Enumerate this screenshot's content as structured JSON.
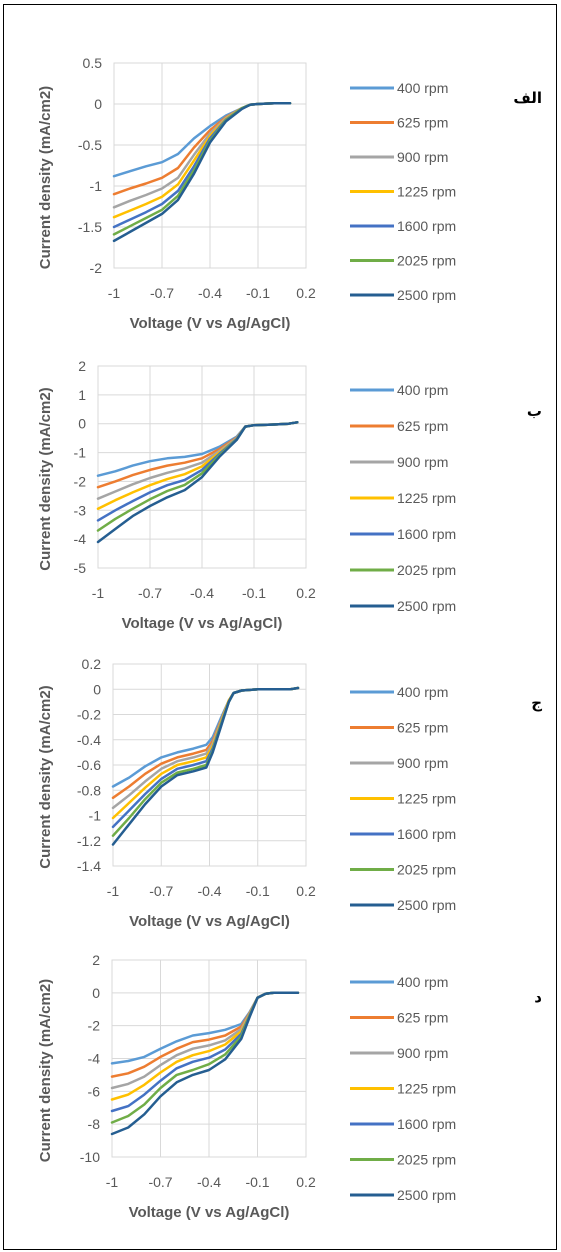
{
  "legend_colors": [
    "#5B9BD5",
    "#ED7D31",
    "#A5A5A5",
    "#FFC000",
    "#4472C4",
    "#70AD47",
    "#255E91"
  ],
  "chart_data": [
    {
      "type": "line",
      "panel_label": "الف",
      "xlabel": "Voltage (V vs Ag/AgCl)",
      "ylabel": "Current density (mA/cm2)",
      "xlim": [
        -1,
        0.2
      ],
      "xticks": [
        "-1",
        "-0.7",
        "-0.4",
        "-0.1",
        "0.2"
      ],
      "ylim": [
        -2,
        0.5
      ],
      "yticks": [
        "0.5",
        "0",
        "-0.5",
        "-1",
        "-1.5",
        "-2"
      ],
      "x": [
        -1,
        -0.9,
        -0.8,
        -0.7,
        -0.6,
        -0.5,
        -0.4,
        -0.3,
        -0.2,
        -0.15,
        -0.1,
        0,
        0.1
      ],
      "series": [
        {
          "name": "400 rpm",
          "values": [
            -0.88,
            -0.82,
            -0.76,
            -0.71,
            -0.61,
            -0.42,
            -0.27,
            -0.14,
            -0.05,
            -0.01,
            0.0,
            0.01,
            0.01
          ]
        },
        {
          "name": "625 rpm",
          "values": [
            -1.1,
            -1.03,
            -0.97,
            -0.9,
            -0.78,
            -0.53,
            -0.32,
            -0.16,
            -0.05,
            -0.01,
            0.0,
            0.01,
            0.01
          ]
        },
        {
          "name": "900 rpm",
          "values": [
            -1.26,
            -1.18,
            -1.11,
            -1.03,
            -0.9,
            -0.62,
            -0.36,
            -0.17,
            -0.05,
            -0.01,
            0.0,
            0.01,
            0.01
          ]
        },
        {
          "name": "1225 rpm",
          "values": [
            -1.38,
            -1.3,
            -1.22,
            -1.13,
            -0.98,
            -0.69,
            -0.39,
            -0.18,
            -0.05,
            -0.01,
            0.0,
            0.01,
            0.01
          ]
        },
        {
          "name": "1600 rpm",
          "values": [
            -1.5,
            -1.41,
            -1.32,
            -1.22,
            -1.06,
            -0.76,
            -0.42,
            -0.19,
            -0.05,
            -0.01,
            0.0,
            0.01,
            0.01
          ]
        },
        {
          "name": "2025 rpm",
          "values": [
            -1.59,
            -1.49,
            -1.39,
            -1.29,
            -1.12,
            -0.81,
            -0.45,
            -0.2,
            -0.05,
            -0.01,
            0.0,
            0.01,
            0.01
          ]
        },
        {
          "name": "2500 rpm",
          "values": [
            -1.67,
            -1.56,
            -1.45,
            -1.34,
            -1.17,
            -0.85,
            -0.47,
            -0.21,
            -0.06,
            -0.01,
            0.0,
            0.01,
            0.01
          ]
        }
      ]
    },
    {
      "type": "line",
      "panel_label": "ب",
      "xlabel": "Voltage (V vs Ag/AgCl)",
      "ylabel": "Current density (mA/cm2)",
      "xlim": [
        -1,
        0.2
      ],
      "xticks": [
        "-1",
        "-0.7",
        "-0.4",
        "-0.1",
        "0.2"
      ],
      "ylim": [
        -5,
        2
      ],
      "yticks": [
        "2",
        "1",
        "0",
        "-1",
        "-2",
        "-3",
        "-4",
        "-5"
      ],
      "x": [
        -1,
        -0.9,
        -0.8,
        -0.7,
        -0.6,
        -0.5,
        -0.4,
        -0.3,
        -0.2,
        -0.15,
        -0.1,
        0,
        0.1,
        0.15
      ],
      "series": [
        {
          "name": "400 rpm",
          "values": [
            -1.8,
            -1.65,
            -1.45,
            -1.3,
            -1.2,
            -1.15,
            -1.05,
            -0.8,
            -0.45,
            -0.1,
            -0.05,
            -0.03,
            0.0,
            0.05
          ]
        },
        {
          "name": "625 rpm",
          "values": [
            -2.2,
            -2.0,
            -1.78,
            -1.6,
            -1.45,
            -1.35,
            -1.2,
            -0.88,
            -0.48,
            -0.1,
            -0.05,
            -0.03,
            0.0,
            0.05
          ]
        },
        {
          "name": "900 rpm",
          "values": [
            -2.6,
            -2.35,
            -2.1,
            -1.88,
            -1.7,
            -1.55,
            -1.35,
            -0.95,
            -0.5,
            -0.1,
            -0.05,
            -0.03,
            0.0,
            0.05
          ]
        },
        {
          "name": "1225 rpm",
          "values": [
            -2.95,
            -2.65,
            -2.38,
            -2.13,
            -1.92,
            -1.75,
            -1.48,
            -1.0,
            -0.52,
            -0.1,
            -0.05,
            -0.03,
            0.0,
            0.05
          ]
        },
        {
          "name": "1600 rpm",
          "values": [
            -3.35,
            -3.0,
            -2.68,
            -2.38,
            -2.13,
            -1.95,
            -1.6,
            -1.05,
            -0.53,
            -0.1,
            -0.05,
            -0.03,
            0.0,
            0.05
          ]
        },
        {
          "name": "2025 rpm",
          "values": [
            -3.7,
            -3.3,
            -2.95,
            -2.62,
            -2.33,
            -2.12,
            -1.72,
            -1.1,
            -0.55,
            -0.1,
            -0.05,
            -0.03,
            0.0,
            0.05
          ]
        },
        {
          "name": "2500 rpm",
          "values": [
            -4.1,
            -3.65,
            -3.2,
            -2.85,
            -2.55,
            -2.3,
            -1.85,
            -1.15,
            -0.56,
            -0.1,
            -0.05,
            -0.03,
            0.0,
            0.05
          ]
        }
      ]
    },
    {
      "type": "line",
      "panel_label": "ج",
      "xlabel": "Voltage (V vs Ag/AgCl)",
      "ylabel": "Current density (mA/cm2)",
      "xlim": [
        -1,
        0.2
      ],
      "xticks": [
        "-1",
        "-0.7",
        "-0.4",
        "-0.1",
        "0.2"
      ],
      "ylim": [
        -1.4,
        0.2
      ],
      "yticks": [
        "0.2",
        "0",
        "-0.2",
        "-0.4",
        "-0.6",
        "-0.8",
        "-1",
        "-1.2",
        "-1.4"
      ],
      "x": [
        -1,
        -0.9,
        -0.8,
        -0.7,
        -0.6,
        -0.5,
        -0.42,
        -0.38,
        -0.33,
        -0.28,
        -0.25,
        -0.2,
        -0.1,
        0,
        0.1,
        0.15
      ],
      "series": [
        {
          "name": "400 rpm",
          "values": [
            -0.77,
            -0.7,
            -0.61,
            -0.54,
            -0.5,
            -0.47,
            -0.44,
            -0.38,
            -0.23,
            -0.09,
            -0.03,
            -0.01,
            0.0,
            0.0,
            0.0,
            0.01
          ]
        },
        {
          "name": "625 rpm",
          "values": [
            -0.86,
            -0.77,
            -0.67,
            -0.59,
            -0.54,
            -0.51,
            -0.48,
            -0.41,
            -0.25,
            -0.09,
            -0.03,
            -0.01,
            0.0,
            0.0,
            0.0,
            0.01
          ]
        },
        {
          "name": "900 rpm",
          "values": [
            -0.94,
            -0.84,
            -0.73,
            -0.63,
            -0.57,
            -0.54,
            -0.51,
            -0.43,
            -0.26,
            -0.09,
            -0.03,
            -0.01,
            0.0,
            0.0,
            0.0,
            0.01
          ]
        },
        {
          "name": "1225 rpm",
          "values": [
            -1.02,
            -0.9,
            -0.78,
            -0.67,
            -0.6,
            -0.57,
            -0.54,
            -0.45,
            -0.27,
            -0.09,
            -0.03,
            -0.01,
            0.0,
            0.0,
            0.0,
            0.01
          ]
        },
        {
          "name": "1600 rpm",
          "values": [
            -1.09,
            -0.96,
            -0.83,
            -0.71,
            -0.63,
            -0.6,
            -0.57,
            -0.47,
            -0.28,
            -0.1,
            -0.03,
            -0.01,
            0.0,
            0.0,
            0.0,
            0.01
          ]
        },
        {
          "name": "2025 rpm",
          "values": [
            -1.16,
            -1.02,
            -0.87,
            -0.74,
            -0.66,
            -0.63,
            -0.6,
            -0.49,
            -0.29,
            -0.1,
            -0.03,
            -0.01,
            0.0,
            0.0,
            0.0,
            0.01
          ]
        },
        {
          "name": "2500 rpm",
          "values": [
            -1.23,
            -1.07,
            -0.91,
            -0.77,
            -0.68,
            -0.65,
            -0.62,
            -0.5,
            -0.3,
            -0.1,
            -0.03,
            -0.01,
            0.0,
            0.0,
            0.0,
            0.01
          ]
        }
      ]
    },
    {
      "type": "line",
      "panel_label": "د",
      "xlabel": "Voltage (V vs Ag/AgCl)",
      "ylabel": "Current density (mA/cm2)",
      "xlim": [
        -1,
        0.2
      ],
      "xticks": [
        "-1",
        "-0.7",
        "-0.4",
        "-0.1",
        "0.2"
      ],
      "ylim": [
        -10,
        2
      ],
      "yticks": [
        "2",
        "0",
        "-2",
        "-4",
        "-6",
        "-8",
        "-10"
      ],
      "x": [
        -1,
        -0.9,
        -0.8,
        -0.7,
        -0.6,
        -0.5,
        -0.4,
        -0.3,
        -0.2,
        -0.15,
        -0.1,
        -0.05,
        0,
        0.1,
        0.15
      ],
      "series": [
        {
          "name": "400 rpm",
          "values": [
            -4.3,
            -4.15,
            -3.9,
            -3.4,
            -2.95,
            -2.6,
            -2.45,
            -2.25,
            -1.9,
            -1.2,
            -0.3,
            -0.05,
            0.0,
            0.0,
            0.0
          ]
        },
        {
          "name": "625 rpm",
          "values": [
            -5.1,
            -4.9,
            -4.5,
            -3.9,
            -3.4,
            -3.0,
            -2.85,
            -2.6,
            -2.05,
            -1.25,
            -0.3,
            -0.05,
            0.0,
            0.0,
            0.0
          ]
        },
        {
          "name": "900 rpm",
          "values": [
            -5.8,
            -5.55,
            -5.1,
            -4.4,
            -3.8,
            -3.4,
            -3.2,
            -2.9,
            -2.2,
            -1.3,
            -0.3,
            -0.05,
            0.0,
            0.0,
            0.0
          ]
        },
        {
          "name": "1225 rpm",
          "values": [
            -6.5,
            -6.2,
            -5.6,
            -4.85,
            -4.2,
            -3.8,
            -3.55,
            -3.15,
            -2.35,
            -1.35,
            -0.3,
            -0.05,
            0.0,
            0.0,
            0.0
          ]
        },
        {
          "name": "1600 rpm",
          "values": [
            -7.2,
            -6.9,
            -6.2,
            -5.35,
            -4.6,
            -4.2,
            -3.95,
            -3.45,
            -2.5,
            -1.4,
            -0.3,
            -0.05,
            0.0,
            0.0,
            0.0
          ]
        },
        {
          "name": "2025 rpm",
          "values": [
            -7.9,
            -7.5,
            -6.8,
            -5.8,
            -5.0,
            -4.7,
            -4.35,
            -3.75,
            -2.65,
            -1.45,
            -0.3,
            -0.05,
            0.0,
            0.0,
            0.0
          ]
        },
        {
          "name": "2500 rpm",
          "values": [
            -8.6,
            -8.2,
            -7.4,
            -6.3,
            -5.45,
            -5.0,
            -4.7,
            -4.05,
            -2.8,
            -1.5,
            -0.3,
            -0.05,
            0.0,
            0.0,
            0.0
          ]
        }
      ]
    }
  ]
}
